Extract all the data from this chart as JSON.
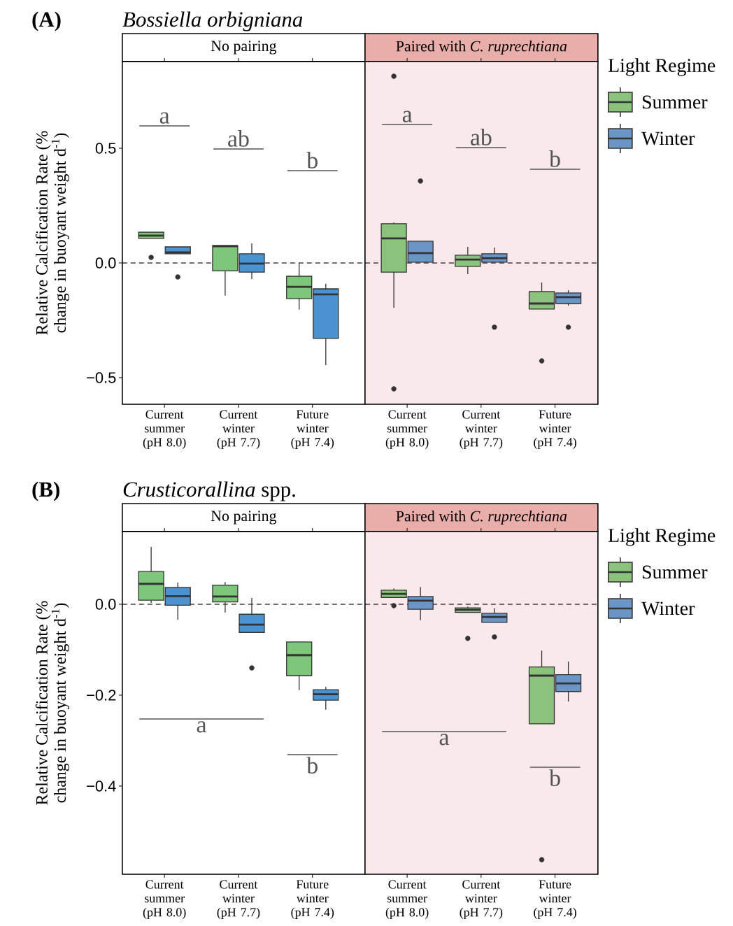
{
  "chart_data": [
    {
      "type": "box",
      "title": "*Bossiella orbigniana*",
      "subtitle": "No pairing",
      "ylabel": "Relative Calcification Rate (% change in buoyant weight d$^{-1}$)",
      "annotations": [
        "**(A)**",
        "a",
        "ab",
        "b"
      ],
      "categories": [
        "Current summer (pH 8.0)",
        "Current winter (pH 7.7)",
        "Future winter (pH 7.4)"
      ],
      "ylim": [
        -0.616,
        0.878
      ],
      "yticks": [
        {
          "value": -0.5,
          "label": "−0.5"
        },
        {
          "value": 0,
          "label": "0.0"
        },
        {
          "value": 0.5,
          "label": "0.5"
        }
      ],
      "ref_lines": [
        {
          "axis": "y",
          "value": 0,
          "line_style": "dashed",
          "color": "#444444"
        }
      ],
      "series": [
        {
          "color": "#7dc67a",
          "boxes": [
            {
              "low": 0.107,
              "q1": 0.107,
              "median": 0.119,
              "q3": 0.134,
              "high": 0.134,
              "outliers": [
                0.024
              ]
            },
            {
              "low": -0.143,
              "q1": -0.034,
              "median": 0.073,
              "q3": 0.076,
              "high": 0.076
            },
            {
              "low": -0.204,
              "q1": -0.155,
              "median": -0.104,
              "q3": -0.058,
              "high": 0.0
            }
          ]
        },
        {
          "color": "#4a93d0",
          "boxes": [
            {
              "low": 0.04,
              "q1": 0.04,
              "median": 0.046,
              "q3": 0.07,
              "high": 0.07,
              "outliers": [
                -0.061
              ]
            },
            {
              "low": -0.07,
              "q1": -0.04,
              "median": -0.003,
              "q3": 0.04,
              "high": 0.085
            },
            {
              "low": -0.445,
              "q1": -0.329,
              "median": -0.137,
              "q3": -0.113,
              "high": -0.091
            }
          ]
        }
      ]
    },
    {
      "type": "box",
      "subtitle": "Paired with *C. ruprechtiana*",
      "legend": "right",
      "legend_title": "Light Regime",
      "tick_labels": "x",
      "annotations": [
        "a",
        "ab",
        "b"
      ],
      "categories": [
        "Current summer (pH 8.0)",
        "Current winter (pH 7.7)",
        "Future winter (pH 7.4)"
      ],
      "ylim": [
        -0.616,
        0.878
      ],
      "bands": [
        {
          "axis": "y",
          "from": -0.616,
          "to": 0.878,
          "color": "#f9e9ea"
        }
      ],
      "ref_lines": [
        {
          "axis": "y",
          "value": 0,
          "line_style": "dashed",
          "color": "#4a3c3c"
        }
      ],
      "series": [
        {
          "name": "Summer",
          "color": "#8bc27c",
          "boxes": [
            {
              "low": -0.195,
              "q1": -0.04,
              "median": 0.107,
              "q3": 0.171,
              "high": 0.177,
              "outliers": [
                0.814,
                -0.549
              ]
            },
            {
              "low": -0.049,
              "q1": -0.015,
              "median": 0.015,
              "q3": 0.034,
              "high": 0.07
            },
            {
              "low": -0.201,
              "q1": -0.201,
              "median": -0.177,
              "q3": -0.125,
              "high": -0.085,
              "outliers": [
                -0.427
              ]
            }
          ]
        },
        {
          "name": "Winter",
          "color": "#6a95c4",
          "boxes": [
            {
              "low": 0.003,
              "q1": 0.003,
              "median": 0.043,
              "q3": 0.095,
              "high": 0.095,
              "outliers": [
                0.357
              ]
            },
            {
              "low": 0.003,
              "q1": 0.003,
              "median": 0.021,
              "q3": 0.04,
              "high": 0.067,
              "outliers": [
                -0.28
              ]
            },
            {
              "low": -0.186,
              "q1": -0.177,
              "median": -0.149,
              "q3": -0.131,
              "high": -0.119,
              "outliers": [
                -0.28
              ]
            }
          ]
        }
      ]
    },
    {
      "type": "box",
      "title": "*Crusticorallina* spp.",
      "subtitle": "No pairing",
      "ylabel": "Relative Calcification Rate (% change in buoyant weight d$^{-1}$)",
      "annotations": [
        "**(B)**",
        "a",
        "b"
      ],
      "categories": [
        "Current summer (pH 8.0)",
        "Current winter (pH 7.7)",
        "Future winter (pH 7.4)"
      ],
      "ylim": [
        -0.594,
        0.16
      ],
      "yticks": [
        {
          "value": -0.4,
          "label": "−0.4"
        },
        {
          "value": -0.2,
          "label": "−0.2"
        },
        {
          "value": 0,
          "label": "0.0"
        }
      ],
      "ref_lines": [
        {
          "axis": "y",
          "value": 0,
          "line_style": "dashed",
          "color": "#444444"
        }
      ],
      "series": [
        {
          "color": "#7dc67a",
          "boxes": [
            {
              "low": 0.003,
              "q1": 0.009,
              "median": 0.045,
              "q3": 0.072,
              "high": 0.126
            },
            {
              "low": -0.018,
              "q1": 0.005,
              "median": 0.017,
              "q3": 0.042,
              "high": 0.049
            },
            {
              "low": -0.189,
              "q1": -0.157,
              "median": -0.112,
              "q3": -0.083,
              "high": -0.083
            }
          ]
        },
        {
          "color": "#4a93d0",
          "boxes": [
            {
              "low": -0.034,
              "q1": -0.002,
              "median": 0.018,
              "q3": 0.037,
              "high": 0.048
            },
            {
              "low": -0.062,
              "q1": -0.062,
              "median": -0.045,
              "q3": -0.022,
              "high": 0.014,
              "outliers": [
                -0.14
              ]
            },
            {
              "low": -0.232,
              "q1": -0.211,
              "median": -0.198,
              "q3": -0.188,
              "high": -0.182
            }
          ]
        }
      ]
    },
    {
      "type": "box",
      "subtitle": "Paired with *C. ruprechtiana*",
      "legend": "right",
      "legend_title": "Light Regime",
      "tick_labels": "x",
      "annotations": [
        "a",
        "b"
      ],
      "categories": [
        "Current summer (pH 8.0)",
        "Current winter (pH 7.7)",
        "Future winter (pH 7.4)"
      ],
      "ylim": [
        -0.594,
        0.16
      ],
      "bands": [
        {
          "axis": "y",
          "from": -0.594,
          "to": 0.16,
          "color": "#f9e9ea"
        }
      ],
      "ref_lines": [
        {
          "axis": "y",
          "value": 0,
          "line_style": "dashed",
          "color": "#4a3c3c"
        }
      ],
      "series": [
        {
          "name": "Summer",
          "color": "#8bc27c",
          "boxes": [
            {
              "low": 0.014,
              "q1": 0.015,
              "median": 0.023,
              "q3": 0.031,
              "high": 0.035,
              "outliers": [
                -0.003
              ]
            },
            {
              "low": -0.018,
              "q1": -0.018,
              "median": -0.012,
              "q3": -0.008,
              "high": -0.005,
              "outliers": [
                -0.075
              ]
            },
            {
              "low": -0.263,
              "q1": -0.263,
              "median": -0.157,
              "q3": -0.138,
              "high": -0.102,
              "outliers": [
                -0.562
              ]
            }
          ]
        },
        {
          "name": "Winter",
          "color": "#6a95c4",
          "boxes": [
            {
              "low": -0.035,
              "q1": -0.011,
              "median": 0.008,
              "q3": 0.017,
              "high": 0.038
            },
            {
              "low": -0.04,
              "q1": -0.04,
              "median": -0.028,
              "q3": -0.02,
              "high": -0.009,
              "outliers": [
                -0.072
              ]
            },
            {
              "low": -0.214,
              "q1": -0.192,
              "median": -0.174,
              "q3": -0.155,
              "high": -0.126
            }
          ]
        }
      ]
    }
  ]
}
